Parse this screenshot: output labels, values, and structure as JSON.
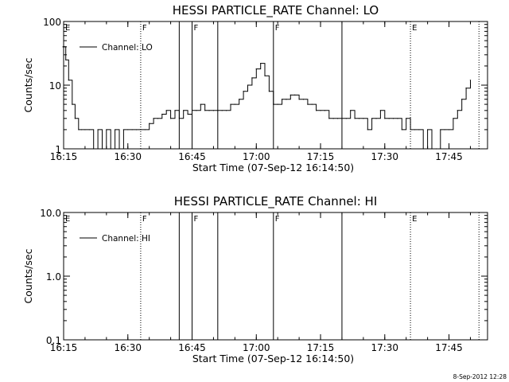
{
  "chart_data": [
    {
      "type": "line",
      "title": "HESSI PARTICLE_RATE Channel: LO",
      "xlabel": "Start Time (07-Sep-12 16:14:50)",
      "ylabel": "Counts/sec",
      "y_scale": "log",
      "ylim": [
        1,
        100
      ],
      "xlim": [
        "16:15",
        "17:54"
      ],
      "x_ticks": [
        "16:15",
        "16:30",
        "16:45",
        "17:00",
        "17:15",
        "17:30",
        "17:45"
      ],
      "y_ticks": [
        "1",
        "10",
        "100"
      ],
      "legend": {
        "placement": "top-left",
        "entries": [
          "Channel: LO"
        ]
      },
      "series": [
        {
          "name": "Channel: LO",
          "x": [
            "16:14:50",
            "16:15:30",
            "16:16:10",
            "16:17:00",
            "16:17:40",
            "16:18:30",
            "16:19:10",
            "16:20:00",
            "16:21:00",
            "16:22:00",
            "16:23:00",
            "16:24:00",
            "16:25:00",
            "16:26:00",
            "16:27:00",
            "16:28:00",
            "16:29:00",
            "16:30:00",
            "16:31:00",
            "16:32:00",
            "16:33:00",
            "16:34:00",
            "16:35:00",
            "16:36:00",
            "16:37:00",
            "16:38:00",
            "16:39:00",
            "16:40:00",
            "16:41:00",
            "16:42:00",
            "16:43:00",
            "16:44:00",
            "16:45:00",
            "16:46:00",
            "16:47:00",
            "16:48:00",
            "16:49:00",
            "16:50:00",
            "16:51:00",
            "16:52:00",
            "16:53:00",
            "16:54:00",
            "16:55:00",
            "16:56:00",
            "16:57:00",
            "16:58:00",
            "16:59:00",
            "17:00:00",
            "17:01:00",
            "17:02:00",
            "17:03:00",
            "17:04:00",
            "17:05:00",
            "17:06:00",
            "17:07:00",
            "17:08:00",
            "17:09:00",
            "17:10:00",
            "17:11:00",
            "17:12:00",
            "17:13:00",
            "17:14:00",
            "17:15:00",
            "17:16:00",
            "17:17:00",
            "17:18:00",
            "17:19:00",
            "17:20:00",
            "17:21:00",
            "17:22:00",
            "17:23:00",
            "17:24:00",
            "17:25:00",
            "17:26:00",
            "17:27:00",
            "17:28:00",
            "17:29:00",
            "17:30:00",
            "17:31:00",
            "17:32:00",
            "17:33:00",
            "17:34:00",
            "17:35:00",
            "17:36:00",
            "17:37:00",
            "17:38:00",
            "17:39:00",
            "17:40:00",
            "17:41:00",
            "17:42:00",
            "17:43:00",
            "17:44:00",
            "17:45:00",
            "17:46:00",
            "17:47:00",
            "17:48:00",
            "17:49:00",
            "17:50:00"
          ],
          "y": [
            40,
            25,
            12,
            5,
            3,
            2,
            2,
            2,
            2,
            1,
            2,
            1,
            2,
            1,
            2,
            1,
            2,
            2,
            2,
            2,
            2,
            2,
            2.5,
            3,
            3,
            3.5,
            4,
            3,
            4,
            3,
            4,
            3.5,
            4,
            4,
            5,
            4,
            4,
            4,
            4,
            4,
            4,
            5,
            5,
            6,
            8,
            10,
            13,
            18,
            22,
            14,
            8,
            5,
            5,
            6,
            6,
            7,
            7,
            6,
            6,
            5,
            5,
            4,
            4,
            4,
            3,
            3,
            3,
            3,
            3,
            4,
            3,
            3,
            3,
            2,
            3,
            3,
            4,
            3,
            3,
            3,
            3,
            2,
            3,
            2,
            2,
            2,
            1,
            2,
            1,
            1,
            2,
            2,
            2,
            3,
            4,
            6,
            9,
            12
          ]
        }
      ],
      "annotations": [
        {
          "label": "E",
          "x": "16:15",
          "style": "solid"
        },
        {
          "label": "F",
          "x": "16:33",
          "style": "dotted"
        },
        {
          "label": "",
          "x": "16:42",
          "style": "solid"
        },
        {
          "label": "F",
          "x": "16:45",
          "style": "solid"
        },
        {
          "label": "",
          "x": "16:51",
          "style": "solid"
        },
        {
          "label": "F",
          "x": "17:04",
          "style": "solid"
        },
        {
          "label": "",
          "x": "17:20",
          "style": "solid"
        },
        {
          "label": "E",
          "x": "17:36",
          "style": "dotted"
        },
        {
          "label": "",
          "x": "17:52",
          "style": "dotted"
        }
      ]
    },
    {
      "type": "line",
      "title": "HESSI PARTICLE_RATE Channel: HI",
      "xlabel": "Start Time (07-Sep-12 16:14:50)",
      "ylabel": "Counts/sec",
      "y_scale": "log",
      "ylim": [
        0.1,
        10
      ],
      "xlim": [
        "16:15",
        "17:54"
      ],
      "x_ticks": [
        "16:15",
        "16:30",
        "16:45",
        "17:00",
        "17:15",
        "17:30",
        "17:45"
      ],
      "y_ticks": [
        "0.1",
        "1.0",
        "10.0"
      ],
      "legend": {
        "placement": "top-left",
        "entries": [
          "Channel: HI"
        ]
      },
      "series": [
        {
          "name": "Channel: HI",
          "x": [],
          "y": []
        }
      ],
      "annotations": [
        {
          "label": "E",
          "x": "16:15",
          "style": "solid"
        },
        {
          "label": "F",
          "x": "16:33",
          "style": "dotted"
        },
        {
          "label": "",
          "x": "16:42",
          "style": "solid"
        },
        {
          "label": "F",
          "x": "16:45",
          "style": "solid"
        },
        {
          "label": "",
          "x": "16:51",
          "style": "solid"
        },
        {
          "label": "F",
          "x": "17:04",
          "style": "solid"
        },
        {
          "label": "",
          "x": "17:20",
          "style": "solid"
        },
        {
          "label": "E",
          "x": "17:36",
          "style": "dotted"
        },
        {
          "label": "",
          "x": "17:52",
          "style": "dotted"
        }
      ]
    }
  ],
  "footer": {
    "stamp": "8-Sep-2012 12:28"
  }
}
